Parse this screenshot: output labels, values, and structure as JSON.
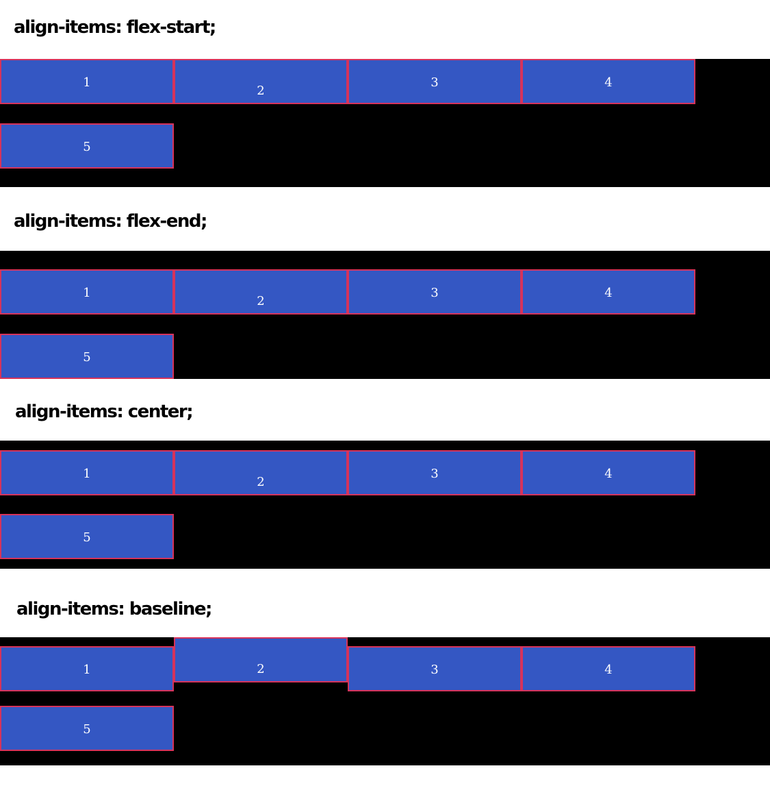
{
  "sections": [
    {
      "heading": "align-items: flex-start;",
      "items": [
        "1",
        "2",
        "3",
        "4",
        "5"
      ]
    },
    {
      "heading": "align-items: flex-end;",
      "items": [
        "1",
        "2",
        "3",
        "4",
        "5"
      ]
    },
    {
      "heading": "align-items: center;",
      "items": [
        "1",
        "2",
        "3",
        "4",
        "5"
      ]
    },
    {
      "heading": "align-items: baseline;",
      "items": [
        "1",
        "2",
        "3",
        "4",
        "5"
      ]
    }
  ],
  "colors": {
    "panel_bg": "#000000",
    "item_bg": "#3457c3",
    "item_border": "#d6335b",
    "item_text": "#ffffff"
  }
}
